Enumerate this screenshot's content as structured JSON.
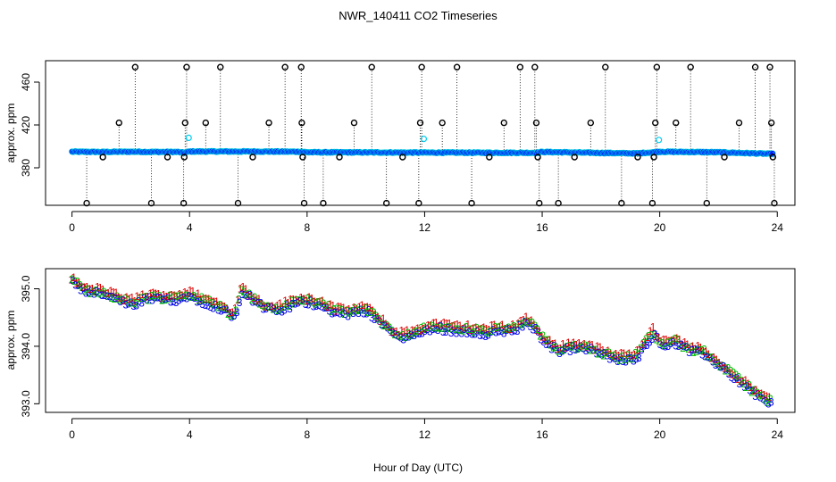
{
  "chart_data": [
    {
      "type": "scatter",
      "title": "NWR_140411  CO2 Timeseries",
      "xlabel": "",
      "ylabel": "approx. ppm",
      "xlim": [
        -0.9,
        24.6
      ],
      "ylim": [
        345,
        480
      ],
      "xticks": [
        0,
        4,
        8,
        12,
        16,
        20,
        24
      ],
      "yticks": [
        380,
        420,
        460
      ],
      "baseline": [
        [
          0.0,
          395
        ],
        [
          1.0,
          394.8
        ],
        [
          2.0,
          395
        ],
        [
          3.0,
          394.8
        ],
        [
          3.6,
          394.8
        ],
        [
          3.8,
          394.0
        ],
        [
          4.0,
          395.2
        ],
        [
          6.0,
          395.2
        ],
        [
          7.8,
          395.0
        ],
        [
          8.0,
          394.5
        ],
        [
          12.0,
          394.2
        ],
        [
          15.8,
          394.0
        ],
        [
          16.0,
          394.8
        ],
        [
          17.7,
          394.0
        ],
        [
          19.2,
          393.5
        ],
        [
          19.8,
          394.5
        ],
        [
          20.0,
          395.0
        ],
        [
          22.0,
          394.5
        ],
        [
          23.8,
          393.0
        ]
      ],
      "spikes": [
        [
          0.5,
          347
        ],
        [
          1.05,
          390
        ],
        [
          1.6,
          422
        ],
        [
          2.15,
          474
        ],
        [
          2.7,
          347
        ],
        [
          3.25,
          390
        ],
        [
          3.8,
          347
        ],
        [
          3.82,
          390
        ],
        [
          3.85,
          422
        ],
        [
          3.9,
          474
        ],
        [
          4.55,
          422
        ],
        [
          5.05,
          474
        ],
        [
          5.65,
          347
        ],
        [
          6.15,
          390
        ],
        [
          6.7,
          422
        ],
        [
          7.25,
          474
        ],
        [
          7.8,
          474
        ],
        [
          7.82,
          422
        ],
        [
          7.85,
          390
        ],
        [
          7.9,
          347
        ],
        [
          8.55,
          347
        ],
        [
          9.1,
          390
        ],
        [
          9.6,
          422
        ],
        [
          10.2,
          474
        ],
        [
          10.7,
          347
        ],
        [
          11.25,
          390
        ],
        [
          11.8,
          347
        ],
        [
          11.85,
          422
        ],
        [
          11.9,
          474
        ],
        [
          12.6,
          422
        ],
        [
          13.1,
          474
        ],
        [
          13.6,
          347
        ],
        [
          14.2,
          390
        ],
        [
          14.7,
          422
        ],
        [
          15.25,
          474
        ],
        [
          15.75,
          474
        ],
        [
          15.8,
          422
        ],
        [
          15.85,
          390
        ],
        [
          15.9,
          347
        ],
        [
          16.55,
          347
        ],
        [
          17.1,
          390
        ],
        [
          17.65,
          422
        ],
        [
          18.15,
          474
        ],
        [
          18.7,
          347
        ],
        [
          19.25,
          390
        ],
        [
          19.75,
          347
        ],
        [
          19.8,
          390
        ],
        [
          19.85,
          422
        ],
        [
          19.9,
          474
        ],
        [
          20.55,
          422
        ],
        [
          21.05,
          474
        ],
        [
          21.6,
          347
        ],
        [
          22.2,
          390
        ],
        [
          22.7,
          422
        ],
        [
          23.25,
          474
        ],
        [
          23.75,
          474
        ],
        [
          23.8,
          422
        ],
        [
          23.85,
          390
        ],
        [
          23.9,
          347
        ]
      ],
      "highlights": [
        [
          3.97,
          408
        ],
        [
          11.97,
          407
        ],
        [
          19.97,
          406
        ]
      ]
    },
    {
      "type": "scatter",
      "title": "",
      "xlabel": "Hour of Day (UTC)",
      "ylabel": "approx. ppm",
      "xlim": [
        -0.9,
        24.6
      ],
      "ylim": [
        392.85,
        395.35
      ],
      "xticks": [
        0,
        4,
        8,
        12,
        16,
        20,
        24
      ],
      "yticks": [
        393.0,
        394.0,
        395.0
      ],
      "ytick_labels": [
        "393.0",
        "394.0",
        "395.0"
      ],
      "marker_labels": [
        "1",
        "2",
        "3"
      ],
      "trend": [
        [
          0.0,
          395.15
        ],
        [
          0.5,
          394.95
        ],
        [
          1.0,
          394.95
        ],
        [
          1.5,
          394.85
        ],
        [
          2.0,
          394.75
        ],
        [
          2.5,
          394.85
        ],
        [
          3.0,
          394.85
        ],
        [
          3.5,
          394.85
        ],
        [
          4.0,
          394.9
        ],
        [
          4.5,
          394.8
        ],
        [
          5.0,
          394.7
        ],
        [
          5.5,
          394.55
        ],
        [
          5.8,
          395.0
        ],
        [
          6.0,
          394.9
        ],
        [
          6.5,
          394.7
        ],
        [
          7.0,
          394.65
        ],
        [
          7.5,
          394.75
        ],
        [
          7.8,
          394.8
        ],
        [
          8.0,
          394.8
        ],
        [
          8.5,
          394.75
        ],
        [
          9.0,
          394.6
        ],
        [
          9.5,
          394.6
        ],
        [
          10.0,
          394.65
        ],
        [
          10.5,
          394.45
        ],
        [
          11.0,
          394.2
        ],
        [
          11.5,
          394.2
        ],
        [
          12.0,
          394.3
        ],
        [
          12.5,
          394.35
        ],
        [
          13.0,
          394.3
        ],
        [
          13.5,
          394.3
        ],
        [
          14.0,
          394.25
        ],
        [
          14.5,
          394.3
        ],
        [
          15.0,
          394.3
        ],
        [
          15.5,
          394.45
        ],
        [
          15.7,
          394.35
        ],
        [
          16.0,
          394.15
        ],
        [
          16.5,
          393.95
        ],
        [
          17.0,
          394.0
        ],
        [
          17.5,
          394.0
        ],
        [
          18.0,
          393.9
        ],
        [
          18.5,
          393.8
        ],
        [
          19.0,
          393.8
        ],
        [
          19.3,
          393.9
        ],
        [
          19.6,
          394.15
        ],
        [
          19.8,
          394.25
        ],
        [
          20.0,
          394.05
        ],
        [
          20.5,
          394.1
        ],
        [
          21.0,
          393.95
        ],
        [
          21.5,
          393.9
        ],
        [
          22.0,
          393.7
        ],
        [
          22.5,
          393.5
        ],
        [
          23.0,
          393.3
        ],
        [
          23.5,
          393.1
        ],
        [
          23.8,
          393.05
        ]
      ]
    }
  ]
}
